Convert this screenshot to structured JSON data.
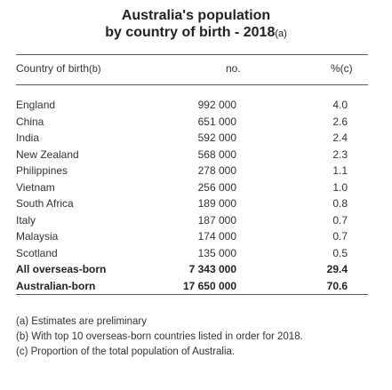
{
  "title": {
    "line1": "Australia's population",
    "line2": "by country of birth - 2018",
    "ref": "(a)"
  },
  "header": {
    "country": "Country of birth",
    "country_ref": "(b)",
    "number": "no.",
    "percent": "%(c)"
  },
  "rows": [
    {
      "country": "England",
      "number": "992 000",
      "percent": "4.0"
    },
    {
      "country": "China",
      "number": "651 000",
      "percent": "2.6"
    },
    {
      "country": "India",
      "number": "592 000",
      "percent": "2.4"
    },
    {
      "country": "New Zealand",
      "number": "568 000",
      "percent": "2.3"
    },
    {
      "country": "Philippines",
      "number": "278 000",
      "percent": "1.1"
    },
    {
      "country": "Vietnam",
      "number": "256 000",
      "percent": "1.0"
    },
    {
      "country": "South Africa",
      "number": "189 000",
      "percent": "0.8"
    },
    {
      "country": "Italy",
      "number": "187 000",
      "percent": "0.7"
    },
    {
      "country": "Malaysia",
      "number": "174 000",
      "percent": "0.7"
    },
    {
      "country": "Scotland",
      "number": "135 000",
      "percent": "0.5"
    }
  ],
  "totals": [
    {
      "country": "All overseas-born",
      "number": "7 343 000",
      "percent": "29.4"
    },
    {
      "country": "Australian-born",
      "number": "17 650 000",
      "percent": "70.6"
    }
  ],
  "notes": [
    "(a) Estimates are preliminary",
    "(b) With top 10 overseas-born countries listed in order for 2018.",
    "(c) Proportion of the total population of Australia."
  ]
}
